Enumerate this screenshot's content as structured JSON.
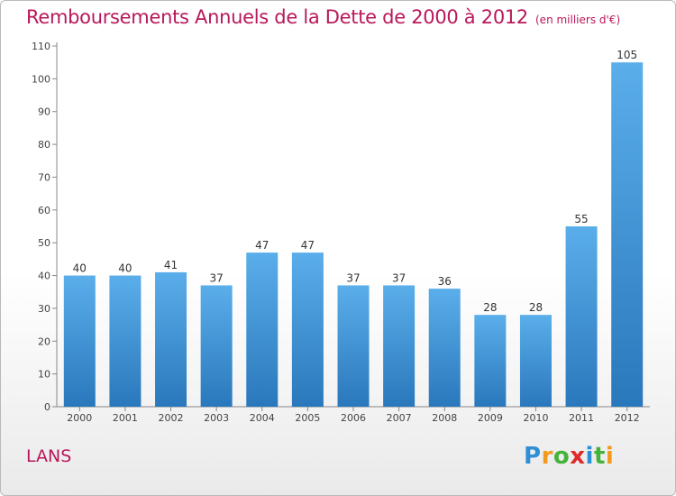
{
  "chart_data": {
    "type": "bar",
    "title": "Remboursements Annuels de la Dette de 2000 à 2012",
    "subtitle": "(en milliers d'€)",
    "categories": [
      "2000",
      "2001",
      "2002",
      "2003",
      "2004",
      "2005",
      "2006",
      "2007",
      "2008",
      "2009",
      "2010",
      "2011",
      "2012"
    ],
    "values": [
      40,
      40,
      41,
      37,
      47,
      47,
      37,
      37,
      36,
      28,
      28,
      55,
      105
    ],
    "ylim": [
      0,
      110
    ],
    "yticks": [
      0,
      10,
      20,
      30,
      40,
      50,
      60,
      70,
      80,
      90,
      100,
      110
    ],
    "grid": false,
    "bar_color_top": "#5aaeea",
    "bar_color_bottom": "#2a78bc"
  },
  "footer": {
    "commune": "LANS",
    "logo": {
      "letters": [
        {
          "char": "P",
          "color": "#2e8fd6"
        },
        {
          "char": "r",
          "color": "#f29a1c"
        },
        {
          "char": "o",
          "color": "#45b33a"
        },
        {
          "char": "x",
          "color": "#e02a2a"
        },
        {
          "char": "i",
          "color": "#2e8fd6"
        },
        {
          "char": "t",
          "color": "#45b33a"
        },
        {
          "char": "i",
          "color": "#f29a1c"
        }
      ]
    }
  }
}
